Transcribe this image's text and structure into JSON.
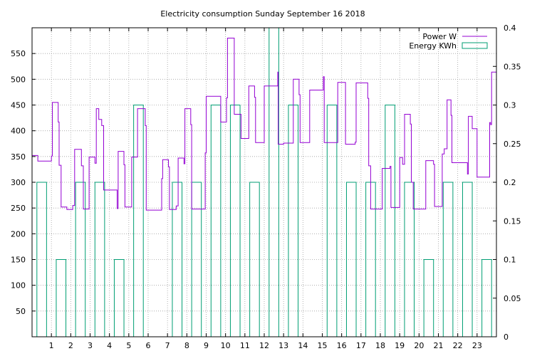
{
  "chart_data": {
    "type": "line",
    "title": "Electricity consumption Sunday September 16 2018",
    "xlabel": "",
    "ylabel": "",
    "y2label": "",
    "xlim": [
      0,
      24
    ],
    "ylim": [
      0,
      600
    ],
    "y2lim": [
      0,
      0.4
    ],
    "x_ticks": [
      1,
      2,
      3,
      4,
      5,
      6,
      7,
      8,
      9,
      10,
      11,
      12,
      13,
      14,
      15,
      16,
      17,
      18,
      19,
      20,
      21,
      22,
      23
    ],
    "y_ticks": [
      50,
      100,
      150,
      200,
      250,
      300,
      350,
      400,
      450,
      500,
      550
    ],
    "y2_ticks": [
      0,
      0.05,
      0.1,
      0.15,
      0.2,
      0.25,
      0.3,
      0.35,
      0.4
    ],
    "grid": true,
    "legend_position": "top-right",
    "series": [
      {
        "name": "Power W",
        "axis": "left",
        "style": "step",
        "color": "#9400d3",
        "points": [
          [
            0.0,
            352
          ],
          [
            0.3,
            352
          ],
          [
            0.3,
            341
          ],
          [
            1.0,
            341
          ],
          [
            1.0,
            351
          ],
          [
            1.05,
            351
          ],
          [
            1.05,
            455
          ],
          [
            1.35,
            455
          ],
          [
            1.35,
            417
          ],
          [
            1.4,
            417
          ],
          [
            1.4,
            333
          ],
          [
            1.5,
            333
          ],
          [
            1.5,
            252
          ],
          [
            1.8,
            252
          ],
          [
            1.8,
            247
          ],
          [
            2.1,
            247
          ],
          [
            2.1,
            255
          ],
          [
            2.2,
            255
          ],
          [
            2.2,
            364
          ],
          [
            2.55,
            364
          ],
          [
            2.55,
            332
          ],
          [
            2.65,
            332
          ],
          [
            2.65,
            248
          ],
          [
            2.95,
            248
          ],
          [
            2.95,
            349
          ],
          [
            3.25,
            349
          ],
          [
            3.25,
            337
          ],
          [
            3.32,
            337
          ],
          [
            3.32,
            443
          ],
          [
            3.45,
            443
          ],
          [
            3.45,
            422
          ],
          [
            3.6,
            422
          ],
          [
            3.6,
            410
          ],
          [
            3.7,
            410
          ],
          [
            3.7,
            285
          ],
          [
            4.4,
            285
          ],
          [
            4.4,
            249
          ],
          [
            4.45,
            249
          ],
          [
            4.45,
            360
          ],
          [
            4.75,
            360
          ],
          [
            4.75,
            334
          ],
          [
            4.8,
            334
          ],
          [
            4.8,
            252
          ],
          [
            5.15,
            252
          ],
          [
            5.15,
            349
          ],
          [
            5.45,
            349
          ],
          [
            5.45,
            443
          ],
          [
            5.85,
            443
          ],
          [
            5.85,
            410
          ],
          [
            5.9,
            410
          ],
          [
            5.9,
            246
          ],
          [
            6.7,
            246
          ],
          [
            6.7,
            307
          ],
          [
            6.75,
            307
          ],
          [
            6.75,
            344
          ],
          [
            7.05,
            344
          ],
          [
            7.05,
            330
          ],
          [
            7.1,
            330
          ],
          [
            7.1,
            247
          ],
          [
            7.45,
            247
          ],
          [
            7.45,
            254
          ],
          [
            7.55,
            254
          ],
          [
            7.55,
            347
          ],
          [
            7.85,
            347
          ],
          [
            7.85,
            336
          ],
          [
            7.9,
            336
          ],
          [
            7.9,
            443
          ],
          [
            8.2,
            443
          ],
          [
            8.2,
            412
          ],
          [
            8.25,
            412
          ],
          [
            8.25,
            248
          ],
          [
            8.95,
            248
          ],
          [
            8.95,
            357
          ],
          [
            9.0,
            357
          ],
          [
            9.0,
            467
          ],
          [
            9.75,
            467
          ],
          [
            9.75,
            417
          ],
          [
            10.05,
            417
          ],
          [
            10.05,
            464
          ],
          [
            10.1,
            464
          ],
          [
            10.1,
            580
          ],
          [
            10.45,
            580
          ],
          [
            10.45,
            432
          ],
          [
            10.8,
            432
          ],
          [
            10.8,
            385
          ],
          [
            11.2,
            385
          ],
          [
            11.2,
            487
          ],
          [
            11.5,
            487
          ],
          [
            11.5,
            465
          ],
          [
            11.55,
            465
          ],
          [
            11.55,
            377
          ],
          [
            12.0,
            377
          ],
          [
            12.0,
            487
          ],
          [
            12.7,
            487
          ],
          [
            12.7,
            514
          ],
          [
            12.72,
            514
          ],
          [
            12.72,
            374
          ],
          [
            13.0,
            374
          ],
          [
            13.0,
            376
          ],
          [
            13.5,
            376
          ],
          [
            13.5,
            500
          ],
          [
            13.8,
            500
          ],
          [
            13.8,
            470
          ],
          [
            13.85,
            470
          ],
          [
            13.85,
            377
          ],
          [
            14.35,
            377
          ],
          [
            14.35,
            479
          ],
          [
            15.05,
            479
          ],
          [
            15.05,
            505
          ],
          [
            15.1,
            505
          ],
          [
            15.1,
            377
          ],
          [
            15.8,
            377
          ],
          [
            15.8,
            494
          ],
          [
            16.2,
            494
          ],
          [
            16.2,
            374
          ],
          [
            16.7,
            374
          ],
          [
            16.7,
            378
          ],
          [
            16.75,
            378
          ],
          [
            16.75,
            493
          ],
          [
            17.35,
            493
          ],
          [
            17.35,
            463
          ],
          [
            17.4,
            463
          ],
          [
            17.4,
            332
          ],
          [
            17.5,
            332
          ],
          [
            17.5,
            248
          ],
          [
            18.1,
            248
          ],
          [
            18.1,
            327
          ],
          [
            18.5,
            327
          ],
          [
            18.5,
            331
          ],
          [
            18.55,
            331
          ],
          [
            18.55,
            251
          ],
          [
            19.0,
            251
          ],
          [
            19.0,
            348
          ],
          [
            19.15,
            348
          ],
          [
            19.15,
            335
          ],
          [
            19.25,
            335
          ],
          [
            19.25,
            432
          ],
          [
            19.55,
            432
          ],
          [
            19.55,
            413
          ],
          [
            19.6,
            413
          ],
          [
            19.6,
            300
          ],
          [
            19.7,
            300
          ],
          [
            19.7,
            248
          ],
          [
            20.35,
            248
          ],
          [
            20.35,
            342
          ],
          [
            20.75,
            342
          ],
          [
            20.75,
            335
          ],
          [
            20.8,
            335
          ],
          [
            20.8,
            253
          ],
          [
            21.2,
            253
          ],
          [
            21.2,
            355
          ],
          [
            21.3,
            355
          ],
          [
            21.3,
            365
          ],
          [
            21.45,
            365
          ],
          [
            21.45,
            460
          ],
          [
            21.65,
            460
          ],
          [
            21.65,
            430
          ],
          [
            21.7,
            430
          ],
          [
            21.7,
            338
          ],
          [
            22.5,
            338
          ],
          [
            22.5,
            316
          ],
          [
            22.55,
            316
          ],
          [
            22.55,
            428
          ],
          [
            22.75,
            428
          ],
          [
            22.75,
            404
          ],
          [
            23.0,
            404
          ],
          [
            23.0,
            310
          ],
          [
            23.65,
            310
          ],
          [
            23.65,
            416
          ],
          [
            23.7,
            416
          ],
          [
            23.7,
            412
          ],
          [
            23.75,
            412
          ],
          [
            23.75,
            514
          ],
          [
            24.0,
            514
          ]
        ]
      },
      {
        "name": "Energy KWh",
        "axis": "right",
        "style": "boxes",
        "color": "#009e73",
        "x": [
          0,
          1,
          2,
          3,
          4,
          5,
          6,
          7,
          8,
          9,
          10,
          11,
          12,
          13,
          14,
          15,
          16,
          17,
          18,
          19,
          20,
          21,
          22,
          23
        ],
        "values": [
          0.2,
          0.1,
          0.2,
          0.2,
          0.1,
          0.3,
          0.0,
          0.2,
          0.2,
          0.3,
          0.3,
          0.2,
          0.4,
          0.3,
          0.0,
          0.3,
          0.2,
          0.2,
          0.3,
          0.2,
          0.1,
          0.2,
          0.2,
          0.1
        ]
      }
    ]
  }
}
